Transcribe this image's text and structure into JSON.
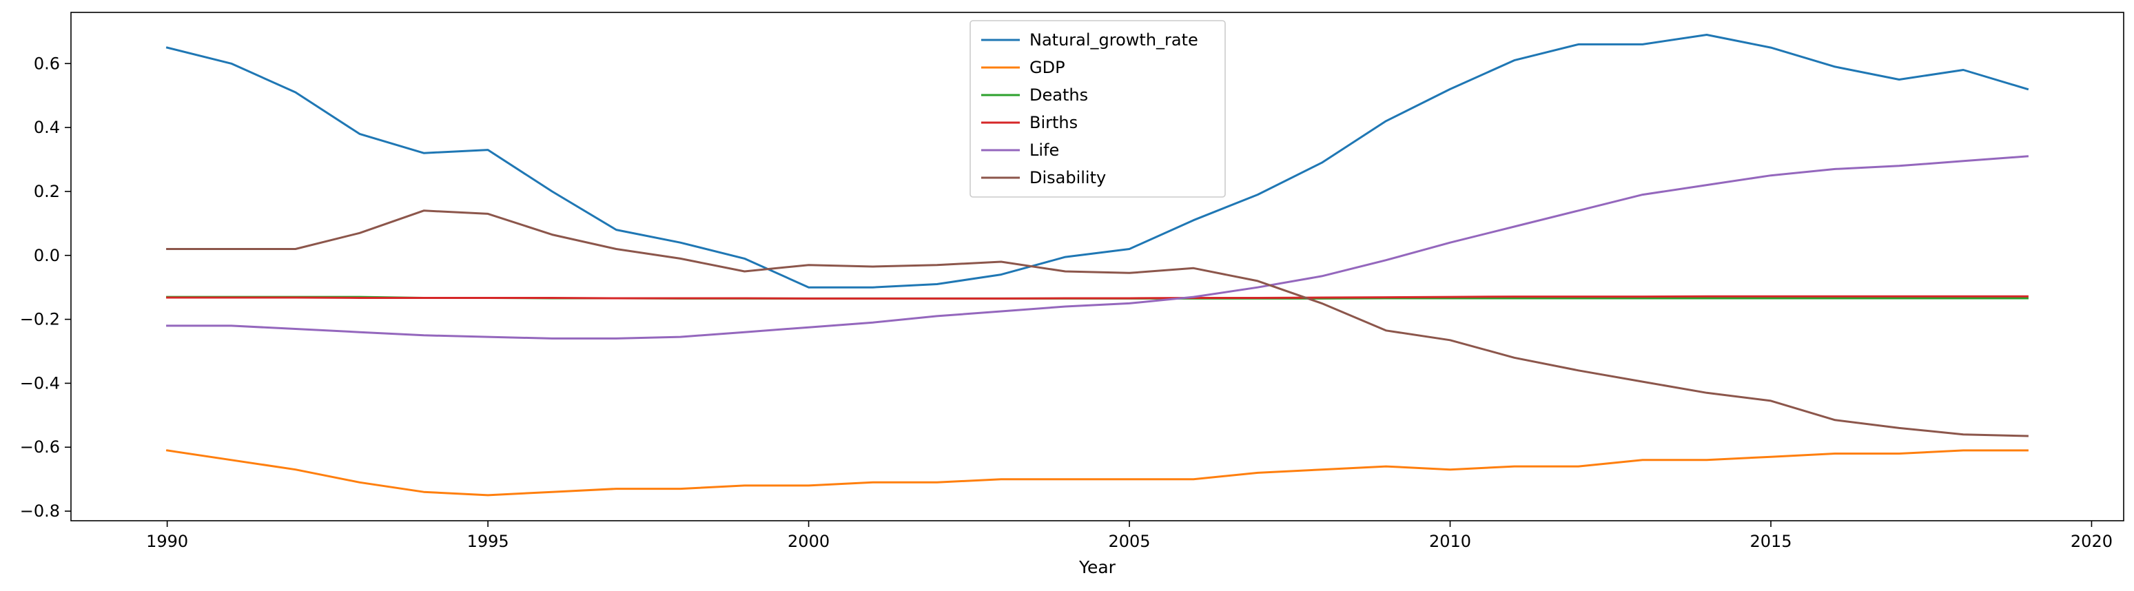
{
  "chart_data": {
    "type": "line",
    "title": "",
    "xlabel": "Year",
    "ylabel": "",
    "xlim": [
      1988.5,
      2020.5
    ],
    "ylim": [
      -0.83,
      0.76
    ],
    "xticks": [
      1990,
      1995,
      2000,
      2005,
      2010,
      2015,
      2020
    ],
    "yticks": [
      -0.8,
      -0.6,
      -0.4,
      -0.2,
      0.0,
      0.2,
      0.4,
      0.6
    ],
    "ytick_labels": [
      "−0.8",
      "−0.6",
      "−0.4",
      "−0.2",
      "0.0",
      "0.2",
      "0.4",
      "0.6"
    ],
    "grid": false,
    "legend_position": "top-center",
    "x": [
      1990,
      1991,
      1992,
      1993,
      1994,
      1995,
      1996,
      1997,
      1998,
      1999,
      2000,
      2001,
      2002,
      2003,
      2004,
      2005,
      2006,
      2007,
      2008,
      2009,
      2010,
      2011,
      2012,
      2013,
      2014,
      2015,
      2016,
      2017,
      2018,
      2019
    ],
    "series": [
      {
        "name": "Natural_growth_rate",
        "color": "#1f77b4",
        "values": [
          0.65,
          0.6,
          0.51,
          0.38,
          0.32,
          0.33,
          0.2,
          0.08,
          0.04,
          -0.01,
          -0.1,
          -0.1,
          -0.09,
          -0.06,
          -0.005,
          0.02,
          0.11,
          0.19,
          0.29,
          0.42,
          0.52,
          0.61,
          0.66,
          0.66,
          0.69,
          0.65,
          0.59,
          0.55,
          0.58,
          0.52
        ]
      },
      {
        "name": "GDP",
        "color": "#ff7f0e",
        "values": [
          -0.61,
          -0.64,
          -0.67,
          -0.71,
          -0.74,
          -0.75,
          -0.74,
          -0.73,
          -0.73,
          -0.72,
          -0.72,
          -0.71,
          -0.71,
          -0.7,
          -0.7,
          -0.7,
          -0.7,
          -0.68,
          -0.67,
          -0.66,
          -0.67,
          -0.66,
          -0.66,
          -0.64,
          -0.64,
          -0.63,
          -0.62,
          -0.62,
          -0.61,
          -0.61
        ]
      },
      {
        "name": "Deaths",
        "color": "#2ca02c",
        "values": [
          -0.13,
          -0.13,
          -0.13,
          -0.13,
          -0.133,
          -0.133,
          -0.134,
          -0.134,
          -0.135,
          -0.135,
          -0.135,
          -0.135,
          -0.135,
          -0.135,
          -0.135,
          -0.135,
          -0.135,
          -0.135,
          -0.135,
          -0.134,
          -0.134,
          -0.134,
          -0.134,
          -0.134,
          -0.134,
          -0.134,
          -0.134,
          -0.134,
          -0.134,
          -0.134
        ]
      },
      {
        "name": "Births",
        "color": "#d62728",
        "values": [
          -0.132,
          -0.132,
          -0.132,
          -0.133,
          -0.133,
          -0.133,
          -0.133,
          -0.134,
          -0.134,
          -0.134,
          -0.135,
          -0.135,
          -0.135,
          -0.135,
          -0.134,
          -0.134,
          -0.133,
          -0.133,
          -0.132,
          -0.131,
          -0.13,
          -0.129,
          -0.129,
          -0.129,
          -0.128,
          -0.128,
          -0.128,
          -0.128,
          -0.128,
          -0.128
        ]
      },
      {
        "name": "Life",
        "color": "#9467bd",
        "values": [
          -0.22,
          -0.22,
          -0.23,
          -0.24,
          -0.25,
          -0.255,
          -0.26,
          -0.26,
          -0.255,
          -0.24,
          -0.225,
          -0.21,
          -0.19,
          -0.175,
          -0.16,
          -0.15,
          -0.13,
          -0.1,
          -0.065,
          -0.015,
          0.04,
          0.09,
          0.14,
          0.19,
          0.22,
          0.25,
          0.27,
          0.28,
          0.295,
          0.31
        ]
      },
      {
        "name": "Disability",
        "color": "#8c564b",
        "values": [
          0.02,
          0.02,
          0.02,
          0.07,
          0.14,
          0.13,
          0.065,
          0.02,
          -0.01,
          -0.05,
          -0.03,
          -0.035,
          -0.03,
          -0.02,
          -0.05,
          -0.055,
          -0.04,
          -0.08,
          -0.15,
          -0.235,
          -0.265,
          -0.32,
          -0.36,
          -0.395,
          -0.43,
          -0.455,
          -0.515,
          -0.54,
          -0.56,
          -0.565
        ]
      }
    ]
  }
}
